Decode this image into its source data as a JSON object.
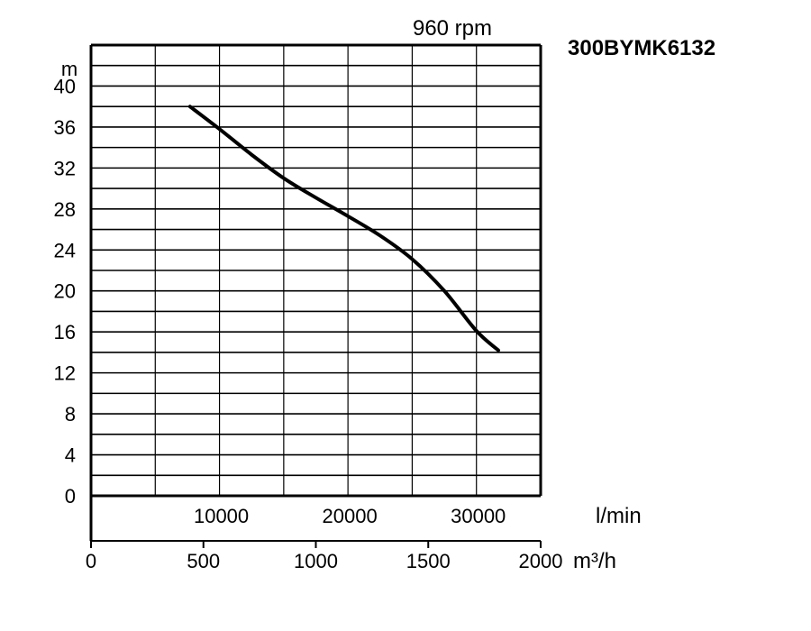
{
  "chart_data": {
    "type": "line",
    "model": "300BYMK6132",
    "speed_label": "960 rpm",
    "y_unit": "m",
    "y_ticks": [
      "0",
      "4",
      "8",
      "12",
      "16",
      "20",
      "24",
      "28",
      "32",
      "36",
      "40"
    ],
    "ylim": [
      0,
      44
    ],
    "x_lmin": {
      "unit": "l/min",
      "range": [
        0,
        35000
      ],
      "tick_values": [
        10000,
        20000,
        30000
      ],
      "tick_labels": [
        "10000",
        "20000",
        "30000"
      ]
    },
    "x_m3h": {
      "unit": "m³/h",
      "range": [
        0,
        2000
      ],
      "tick_values": [
        0,
        500,
        1000,
        1500,
        2000
      ],
      "tick_labels": [
        "0",
        "500",
        "1000",
        "1500",
        "2000"
      ]
    },
    "grid": true,
    "series": [
      {
        "x_lmin": [
          7700,
          10000,
          12500,
          15000,
          17500,
          20000,
          22500,
          25000,
          27500,
          30000,
          31700
        ],
        "y": [
          38.0,
          35.8,
          33.3,
          31.0,
          29.1,
          27.3,
          25.4,
          23.1,
          20.0,
          16.1,
          14.2
        ]
      }
    ]
  },
  "colors": {
    "line": "#000000",
    "grid": "#000000",
    "background": "#ffffff"
  }
}
